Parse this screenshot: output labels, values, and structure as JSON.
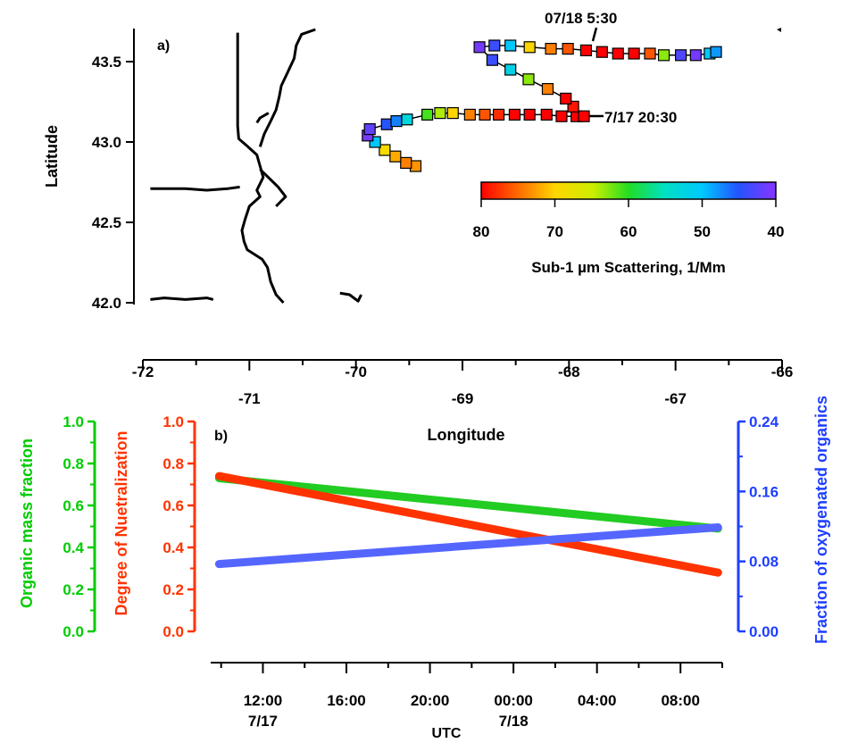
{
  "chart_data": [
    {
      "panel_label": "a)",
      "type": "scatter",
      "ylabel": "Latitude",
      "xlabel": "Longitude",
      "xlim": [
        -72,
        -66
      ],
      "ylim": [
        42.0,
        43.7
      ],
      "x_ticks": [
        -72,
        -71,
        -70,
        -69,
        -68,
        -67,
        -66
      ],
      "x_tick_labels": [
        "-72",
        "-71",
        "-70",
        "-69",
        "-68",
        "-67",
        "-66"
      ],
      "y_ticks": [
        42.0,
        42.5,
        43.0,
        43.5
      ],
      "y_tick_labels": [
        "42.0",
        "42.5",
        "43.0",
        "43.5"
      ],
      "annotations": [
        {
          "text": "07/18 5:30",
          "x": -68.3,
          "y": 43.56
        },
        {
          "text": "7/17 20:30",
          "x": -67.8,
          "y": 43.17
        }
      ],
      "colorbar": {
        "label": "Sub-1 µm Scattering, 1/Mm",
        "range": [
          80,
          40
        ],
        "ticks": [
          "80",
          "70",
          "60",
          "50",
          "40"
        ]
      },
      "trajectory": [
        {
          "x": -69.44,
          "y": 42.85,
          "value": 73
        },
        {
          "x": -69.53,
          "y": 42.87,
          "value": 74
        },
        {
          "x": -69.63,
          "y": 42.91,
          "value": 72
        },
        {
          "x": -69.73,
          "y": 42.95,
          "value": 69
        },
        {
          "x": -69.82,
          "y": 43.0,
          "value": 50
        },
        {
          "x": -69.89,
          "y": 43.04,
          "value": 41
        },
        {
          "x": -69.87,
          "y": 43.08,
          "value": 42
        },
        {
          "x": -69.71,
          "y": 43.11,
          "value": 45
        },
        {
          "x": -69.62,
          "y": 43.13,
          "value": 47
        },
        {
          "x": -69.52,
          "y": 43.14,
          "value": 53
        },
        {
          "x": -69.33,
          "y": 43.17,
          "value": 61
        },
        {
          "x": -69.21,
          "y": 43.18,
          "value": 64
        },
        {
          "x": -69.09,
          "y": 43.18,
          "value": 70
        },
        {
          "x": -68.93,
          "y": 43.17,
          "value": 74
        },
        {
          "x": -68.79,
          "y": 43.17,
          "value": 76
        },
        {
          "x": -68.66,
          "y": 43.17,
          "value": 78
        },
        {
          "x": -68.51,
          "y": 43.17,
          "value": 80
        },
        {
          "x": -68.37,
          "y": 43.17,
          "value": 80
        },
        {
          "x": -68.21,
          "y": 43.17,
          "value": 81
        },
        {
          "x": -68.07,
          "y": 43.16,
          "value": 80
        },
        {
          "x": -67.93,
          "y": 43.16,
          "value": 80
        },
        {
          "x": -67.86,
          "y": 43.16,
          "value": 80
        },
        {
          "x": -67.96,
          "y": 43.22,
          "value": 79
        },
        {
          "x": -68.03,
          "y": 43.27,
          "value": 80
        },
        {
          "x": -68.2,
          "y": 43.33,
          "value": 74
        },
        {
          "x": -68.38,
          "y": 43.39,
          "value": 63
        },
        {
          "x": -68.55,
          "y": 43.45,
          "value": 52
        },
        {
          "x": -68.72,
          "y": 43.51,
          "value": 44
        },
        {
          "x": -68.84,
          "y": 43.59,
          "value": 41
        },
        {
          "x": -68.7,
          "y": 43.6,
          "value": 44
        },
        {
          "x": -68.55,
          "y": 43.6,
          "value": 50
        },
        {
          "x": -68.37,
          "y": 43.59,
          "value": 70
        },
        {
          "x": -68.17,
          "y": 43.58,
          "value": 74
        },
        {
          "x": -68.01,
          "y": 43.58,
          "value": 76
        },
        {
          "x": -67.84,
          "y": 43.57,
          "value": 80
        },
        {
          "x": -67.69,
          "y": 43.56,
          "value": 80
        },
        {
          "x": -67.54,
          "y": 43.55,
          "value": 81
        },
        {
          "x": -67.39,
          "y": 43.55,
          "value": 80
        },
        {
          "x": -67.24,
          "y": 43.55,
          "value": 76
        },
        {
          "x": -67.11,
          "y": 43.54,
          "value": 63
        },
        {
          "x": -66.95,
          "y": 43.54,
          "value": 43
        },
        {
          "x": -66.81,
          "y": 43.54,
          "value": 41
        },
        {
          "x": -66.68,
          "y": 43.55,
          "value": 50
        },
        {
          "x": -66.62,
          "y": 43.56,
          "value": 48
        }
      ]
    },
    {
      "panel_label": "b)",
      "type": "line",
      "xlabel": "UTC",
      "x_range_hours": [
        9.5,
        34.0
      ],
      "x_ticks": [
        12,
        16,
        20,
        24,
        28,
        32
      ],
      "x_tick_labels": [
        "12:00",
        "16:00",
        "20:00",
        "00:00",
        "04:00",
        "08:00"
      ],
      "date_labels": [
        {
          "text": "7/17",
          "at_hour": 12
        },
        {
          "text": "7/18",
          "at_hour": 24
        }
      ],
      "axes": [
        {
          "id": "left-outer",
          "label": "Organic mass fraction",
          "color": "#00cc00",
          "range": [
            0,
            1.0
          ],
          "ticks": [
            "0.0",
            "0.2",
            "0.4",
            "0.6",
            "0.8",
            "1.0"
          ]
        },
        {
          "id": "left-inner",
          "label": "Degree of Nuetralization",
          "color": "#ff3300",
          "range": [
            0,
            1.0
          ],
          "ticks": [
            "0.0",
            "0.2",
            "0.4",
            "0.6",
            "0.8",
            "1.0"
          ]
        },
        {
          "id": "right",
          "label": "Fraction of oxygenated organics",
          "color": "#1f3fff",
          "range": [
            0,
            0.24
          ],
          "ticks": [
            "0.00",
            "0.08",
            "0.16",
            "0.24"
          ]
        }
      ],
      "series": [
        {
          "axis": "left-outer",
          "color": "#22cc22",
          "x": [
            9.9,
            33.8
          ],
          "values": [
            0.73,
            0.49
          ]
        },
        {
          "axis": "left-inner",
          "color": "#ff3300",
          "x": [
            9.9,
            33.8
          ],
          "values": [
            0.74,
            0.28
          ]
        },
        {
          "axis": "right",
          "color": "#5566ff",
          "x": [
            9.9,
            33.8
          ],
          "values": [
            0.077,
            0.119
          ]
        }
      ]
    }
  ],
  "coastline_segments": [
    [
      [
        -71.93,
        42.71
      ],
      [
        -71.8,
        42.71
      ],
      [
        -71.6,
        42.71
      ],
      [
        -71.4,
        42.7
      ],
      [
        -71.2,
        42.71
      ],
      [
        -71.09,
        42.72
      ]
    ],
    [
      [
        -71.93,
        42.02
      ],
      [
        -71.8,
        42.03
      ],
      [
        -71.6,
        42.02
      ],
      [
        -71.4,
        42.03
      ],
      [
        -71.34,
        42.02
      ]
    ],
    [
      [
        -71.11,
        43.68
      ],
      [
        -71.11,
        43.5
      ],
      [
        -71.11,
        43.3
      ],
      [
        -71.11,
        43.1
      ],
      [
        -71.1,
        43.02
      ],
      [
        -71.03,
        42.98
      ],
      [
        -70.93,
        42.92
      ],
      [
        -70.9,
        42.85
      ],
      [
        -70.87,
        42.78
      ],
      [
        -70.93,
        42.7
      ],
      [
        -70.9,
        42.66
      ],
      [
        -71.0,
        42.6
      ],
      [
        -71.04,
        42.52
      ],
      [
        -71.07,
        42.45
      ],
      [
        -71.05,
        42.38
      ],
      [
        -71.02,
        42.33
      ],
      [
        -70.95,
        42.3
      ],
      [
        -70.88,
        42.27
      ],
      [
        -70.83,
        42.22
      ],
      [
        -70.8,
        42.13
      ],
      [
        -70.75,
        42.05
      ],
      [
        -70.68,
        42.0
      ]
    ],
    [
      [
        -70.38,
        43.7
      ],
      [
        -70.51,
        43.67
      ],
      [
        -70.56,
        43.6
      ],
      [
        -70.58,
        43.52
      ],
      [
        -70.65,
        43.42
      ],
      [
        -70.7,
        43.35
      ],
      [
        -70.72,
        43.28
      ],
      [
        -70.75,
        43.2
      ],
      [
        -70.8,
        43.13
      ],
      [
        -70.86,
        43.05
      ],
      [
        -70.9,
        42.97
      ]
    ],
    [
      [
        -70.82,
        43.18
      ],
      [
        -70.9,
        43.15
      ],
      [
        -70.93,
        43.12
      ]
    ],
    [
      [
        -70.9,
        42.83
      ],
      [
        -70.73,
        42.72
      ],
      [
        -70.66,
        42.66
      ],
      [
        -70.75,
        42.6
      ]
    ],
    [
      [
        -70.15,
        42.06
      ],
      [
        -70.06,
        42.05
      ],
      [
        -69.98,
        42.01
      ],
      [
        -69.95,
        42.05
      ]
    ]
  ]
}
